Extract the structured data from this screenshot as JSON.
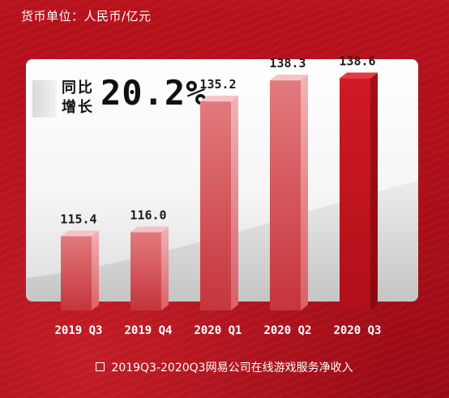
{
  "unit_label": "货币单位：人民币/亿元",
  "growth": {
    "label": "同比增长",
    "value": "20.2%"
  },
  "footer": {
    "caption": "2019Q3-2020Q3网易公司在线游戏服务净收入"
  },
  "colors": {
    "background": "#b3111b",
    "bar_light": "#e2787c",
    "bar_highlight": "#c8141e",
    "text_dark": "#111111"
  },
  "chart_data": {
    "type": "bar",
    "title": "",
    "categories": [
      "2019 Q3",
      "2019 Q4",
      "2020 Q1",
      "2020 Q2",
      "2020 Q3"
    ],
    "values": [
      115.4,
      116.0,
      135.2,
      138.3,
      138.6
    ],
    "value_labels": [
      "115.4",
      "116.0",
      "135.2",
      "138.3",
      "138.6"
    ],
    "highlighted_category": "2020 Q3",
    "xlabel": "",
    "ylabel": "",
    "grid": false,
    "legend": "none"
  }
}
